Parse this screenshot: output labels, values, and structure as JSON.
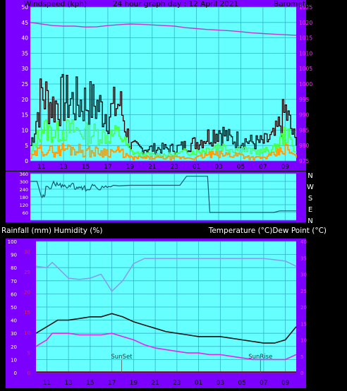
{
  "colors": {
    "frame": "#7b00ff",
    "plot_bg": "#66ffff",
    "grid": "#33b2cc",
    "label_top": "#000000",
    "label_white": "#ffffff",
    "tick_left": "#ffffff",
    "tick_right_magenta": "#ff33ff",
    "tick_red": "#ff2222",
    "wind_gust": "#000000",
    "wind_avg": "#44ff44",
    "wind_orange": "#ff9900",
    "pressure": "#cc33cc",
    "direction": "#0c5a6e",
    "temperature": "#111111",
    "dewpoint": "#ee22ee",
    "humidity": "#8899ee",
    "rain": "#880000"
  },
  "header": {
    "left": "Windspeed (kph)",
    "center": "24 hour graph day : 12 April 2021",
    "right": "Barometer (hpa)"
  },
  "panel3_header": {
    "left": "Rainfall (mm)  Humidity (%)",
    "right": "Temperature (°C)Dew Point (°C)"
  },
  "hour_labels": [
    "11",
    "13",
    "15",
    "17",
    "19",
    "21",
    "23",
    "01",
    "03",
    "05",
    "07",
    "09"
  ],
  "chart_data": [
    {
      "type": "line",
      "title": "24 hour graph day : 12 April 2021",
      "ylabel": "Windspeed (kph)",
      "y2label": "Barometer (hpa)",
      "ylim": [
        0,
        50
      ],
      "y2lim": [
        975,
        1025
      ],
      "yticks": [
        "0",
        "5",
        "10",
        "15",
        "20",
        "25",
        "30",
        "35",
        "40",
        "45",
        "50"
      ],
      "y2ticks": [
        "975",
        "980",
        "985",
        "990",
        "995",
        "1000",
        "1005",
        "1010",
        "1015",
        "1020",
        "1025"
      ],
      "x_hours_from_start": [
        0,
        1,
        2,
        3,
        4,
        5,
        6,
        7,
        8,
        9,
        10,
        11,
        12,
        13,
        14,
        15,
        16,
        17,
        18,
        19,
        20,
        21,
        22,
        23,
        24
      ],
      "series": [
        {
          "key": "gust",
          "values": [
            5,
            22,
            18,
            20,
            19,
            19,
            18,
            15,
            19,
            5,
            4,
            4,
            4,
            4,
            5,
            6,
            8,
            10,
            7,
            7,
            6,
            6,
            8,
            16,
            5
          ]
        },
        {
          "key": "avg",
          "values": [
            2,
            11,
            9,
            10,
            10,
            9,
            9,
            8,
            9,
            3,
            2,
            2,
            2,
            2,
            3,
            3,
            4,
            5,
            4,
            4,
            3,
            3,
            4,
            9,
            3
          ]
        },
        {
          "key": "low",
          "values": [
            1,
            4,
            3,
            4,
            4,
            3,
            3,
            3,
            3,
            1,
            1,
            1,
            1,
            1,
            1,
            1,
            2,
            2,
            2,
            2,
            1,
            1,
            2,
            4,
            1
          ]
        },
        {
          "key": "pressure",
          "axis": "y2",
          "values": [
            1020,
            1019.5,
            1019,
            1018.8,
            1018.8,
            1018.5,
            1018.6,
            1019,
            1019.3,
            1019.5,
            1019.4,
            1019.2,
            1019,
            1018.8,
            1018.3,
            1018,
            1017.7,
            1017.5,
            1017.3,
            1017,
            1016.6,
            1016.4,
            1016.2,
            1016,
            1015.8
          ]
        }
      ]
    },
    {
      "type": "line",
      "ylim": [
        0,
        360
      ],
      "right_labels": [
        "N",
        "W",
        "S",
        "E",
        "N"
      ],
      "x_hours_from_start": [
        0,
        0.6,
        1,
        1.4,
        2,
        2.5,
        3,
        3.5,
        4,
        4.5,
        5,
        5.5,
        6,
        6.8,
        7.5,
        8,
        9,
        11,
        13.5,
        14.1,
        15.9,
        16,
        16.2,
        18,
        20,
        22,
        22.5,
        24
      ],
      "values": [
        300,
        300,
        180,
        260,
        280,
        270,
        260,
        270,
        240,
        250,
        225,
        260,
        250,
        265,
        270,
        265,
        270,
        270,
        270,
        340,
        340,
        340,
        60,
        60,
        60,
        60,
        72,
        72
      ]
    },
    {
      "type": "line",
      "ylabel": "Rainfall (mm)  Humidity (%)",
      "y2label": "Temperature (°C)Dew Point (°C)",
      "ylim": [
        0,
        100
      ],
      "y2lim": [
        0,
        40
      ],
      "yticks": [
        "0",
        "10",
        "20",
        "30",
        "40",
        "50",
        "60",
        "70",
        "80",
        "90",
        "100"
      ],
      "y2ticks": [
        "0",
        "5",
        "10",
        "15",
        "20",
        "25",
        "30",
        "35",
        "40"
      ],
      "rain_ticks": [
        "0",
        "5",
        "10",
        "15",
        "20",
        "25",
        "30"
      ],
      "x_hours_from_start": [
        0,
        1,
        1.5,
        2,
        3,
        4,
        5,
        6,
        7,
        8,
        9,
        10,
        11,
        12,
        13,
        14,
        15,
        16,
        17,
        18,
        19,
        20,
        21,
        22,
        23,
        24
      ],
      "series": [
        {
          "key": "humidity",
          "values": [
            81,
            80,
            84,
            80,
            72,
            71,
            72,
            75,
            62,
            70,
            83,
            87,
            87,
            87,
            87,
            87,
            87,
            87,
            87,
            87,
            87,
            87,
            87,
            86,
            85,
            81
          ]
        },
        {
          "key": "temperature",
          "axis": "y2",
          "values": [
            12,
            14,
            15,
            16,
            16,
            16.5,
            17,
            17,
            18,
            17,
            15.5,
            14.5,
            13.5,
            12.5,
            12,
            11.5,
            11,
            11,
            11,
            10.5,
            10,
            9.5,
            9,
            9,
            10,
            14
          ]
        },
        {
          "key": "dewpoint",
          "axis": "y2",
          "values": [
            8,
            10,
            12,
            12,
            12,
            11.5,
            11.5,
            11.5,
            12,
            11,
            10,
            8.5,
            7.5,
            7,
            6.5,
            6,
            6,
            5.5,
            5.5,
            5,
            4.5,
            4,
            4,
            4,
            4,
            5.5
          ]
        },
        {
          "key": "rain",
          "values": [
            0.4,
            0.4,
            0.4,
            0.4,
            0.4,
            0.4,
            0.4,
            0.4,
            0.4,
            0.4,
            0.4,
            0.4,
            0.4,
            0.4,
            0.4,
            0.4,
            0.4,
            0.4,
            0.4,
            0.4,
            0.4,
            0.4,
            0.4,
            0.4,
            0.4,
            0.4
          ]
        }
      ],
      "annotations": [
        {
          "label": "SunSet",
          "x_hours_from_start": 7.9
        },
        {
          "label": "SunRise",
          "x_hours_from_start": 20.7
        }
      ]
    }
  ]
}
